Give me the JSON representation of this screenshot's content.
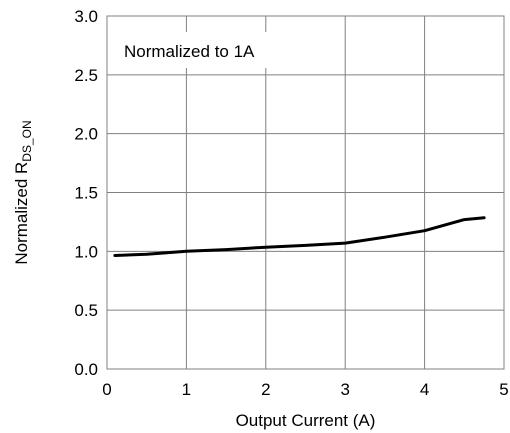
{
  "chart_data": {
    "type": "line",
    "title": "",
    "xlabel": "Output Current (A)",
    "ylabel": {
      "main": "Normalized R",
      "subscript": "DS_ON"
    },
    "annotation": "Normalized to 1A",
    "xlim": [
      0,
      5
    ],
    "ylim": [
      0,
      3
    ],
    "xticks": [
      "0",
      "1",
      "2",
      "3",
      "4",
      "5"
    ],
    "yticks": [
      "0.0",
      "0.5",
      "1.0",
      "1.5",
      "2.0",
      "2.5",
      "3.0"
    ],
    "grid": true,
    "series": [
      {
        "color": "#000000",
        "x": [
          0.1,
          0.5,
          1.0,
          1.5,
          2.0,
          2.5,
          3.0,
          3.5,
          4.0,
          4.5,
          4.75
        ],
        "y": [
          0.965,
          0.975,
          1.0,
          1.015,
          1.035,
          1.05,
          1.07,
          1.12,
          1.175,
          1.27,
          1.285
        ]
      }
    ]
  }
}
